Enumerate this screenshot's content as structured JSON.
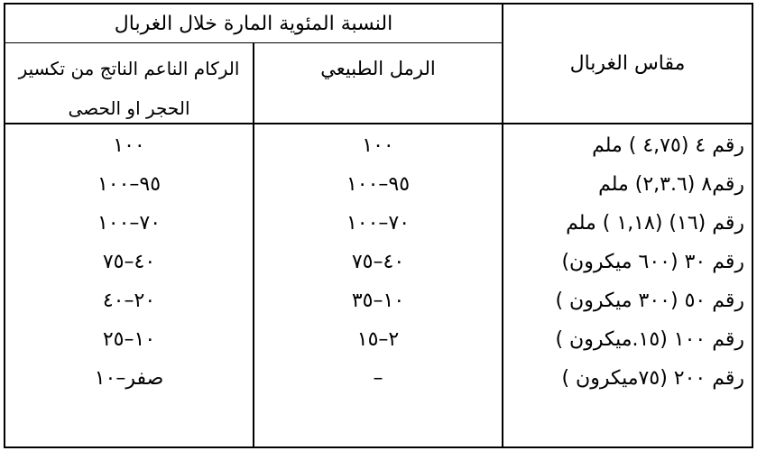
{
  "table": {
    "colors": {
      "border": "#000000",
      "background": "#ffffff",
      "text": "#000000"
    },
    "header": {
      "percent_title": "النسبة المئوية المارة خلال الغربال",
      "sieve_size_title": "مقاس الغربال",
      "sand_col_title": "الرمل الطبيعي",
      "crushed_col_title": "الركام الناعم الناتج من تكسير\nالحجر او الحصى"
    },
    "rows": [
      {
        "size": "رقم ٤ (٤,٧٥ ) ملم",
        "sand": "١٠٠",
        "crushed": "١٠٠"
      },
      {
        "size": "رقم٨ (٢,٣.٦) ملم",
        "sand": "٩٥–١٠٠",
        "crushed": "٩٥–١٠٠"
      },
      {
        "size": "رقم (١٦) (١,١٨ ) ملم",
        "sand": "٧٠–١٠٠",
        "crushed": "٧٠–١٠٠"
      },
      {
        "size": "رقم ٣٠ (٦٠٠ ميكرون)",
        "sand": "٤٠–٧٥",
        "crushed": "٤٠–٧٥"
      },
      {
        "size": "رقم ٥٠ (٣٠٠ ميكرون )",
        "sand": "١٠–٣٥",
        "crushed": "٢٠–٤٠"
      },
      {
        "size": "رقم ١٠٠ (١٥.ميكرون )",
        "sand": "٢–١٥",
        "crushed": "١٠–٢٥"
      },
      {
        "size": "رقم ٢٠٠ (٧٥ميكرون )",
        "sand": "–",
        "crushed": "صفر–١٠"
      }
    ]
  }
}
